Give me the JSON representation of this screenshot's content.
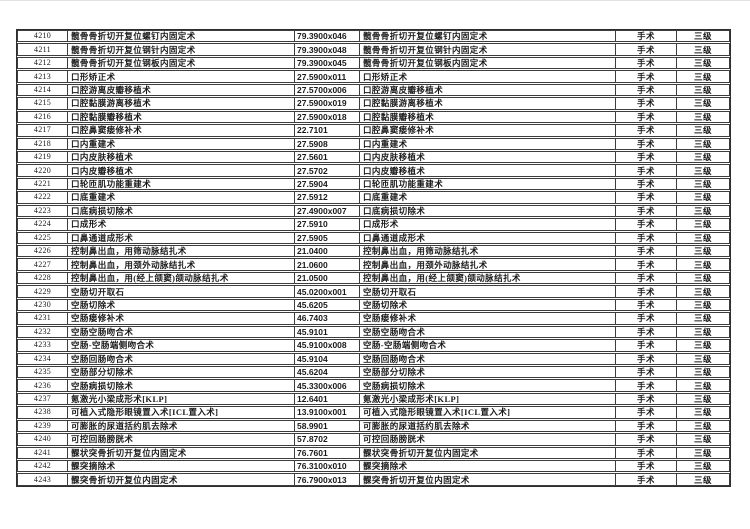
{
  "page": {
    "background": "#ffffff",
    "border_color": "#3d3d3d",
    "text_color": "#1a1a1a"
  },
  "table": {
    "rows": [
      {
        "no": "4210",
        "name": "髋骨骨折切开复位螺钉内固定术",
        "code": "79.3900x046",
        "name_repeat": "髋骨骨折切开复位螺钉内固定术",
        "category": "手术",
        "level": "三级"
      },
      {
        "no": "4211",
        "name": "髋骨骨折切开复位钢针内固定术",
        "code": "79.3900x048",
        "name_repeat": "髋骨骨折切开复位钢针内固定术",
        "category": "手术",
        "level": "三级"
      },
      {
        "no": "4212",
        "name": "髋骨骨折切开复位钢板内固定术",
        "code": "79.3900x045",
        "name_repeat": "髋骨骨折切开复位钢板内固定术",
        "category": "手术",
        "level": "三级"
      },
      {
        "no": "4213",
        "name": "口形矫正术",
        "code": "27.5900x011",
        "name_repeat": "口形矫正术",
        "category": "手术",
        "level": "三级"
      },
      {
        "no": "4214",
        "name": "口腔游离皮瓣移植术",
        "code": "27.5700x006",
        "name_repeat": "口腔游离皮瓣移植术",
        "category": "手术",
        "level": "三级"
      },
      {
        "no": "4215",
        "name": "口腔黏膜游离移植术",
        "code": "27.5900x019",
        "name_repeat": "口腔黏膜游离移植术",
        "category": "手术",
        "level": "三级"
      },
      {
        "no": "4216",
        "name": "口腔黏膜瓣移植术",
        "code": "27.5900x018",
        "name_repeat": "口腔黏膜瓣移植术",
        "category": "手术",
        "level": "三级"
      },
      {
        "no": "4217",
        "name": "口腔鼻窦瘘修补术",
        "code": "22.7101",
        "name_repeat": "口腔鼻窦瘘修补术",
        "category": "手术",
        "level": "三级"
      },
      {
        "no": "4218",
        "name": "口内重建术",
        "code": "27.5908",
        "name_repeat": "口内重建术",
        "category": "手术",
        "level": "三级"
      },
      {
        "no": "4219",
        "name": "口内皮肤移植术",
        "code": "27.5601",
        "name_repeat": "口内皮肤移植术",
        "category": "手术",
        "level": "三级"
      },
      {
        "no": "4220",
        "name": "口内皮瓣移植术",
        "code": "27.5702",
        "name_repeat": "口内皮瓣移植术",
        "category": "手术",
        "level": "三级"
      },
      {
        "no": "4221",
        "name": "口轮匝肌功能重建术",
        "code": "27.5904",
        "name_repeat": "口轮匝肌功能重建术",
        "category": "手术",
        "level": "三级"
      },
      {
        "no": "4222",
        "name": "口底重建术",
        "code": "27.5912",
        "name_repeat": "口底重建术",
        "category": "手术",
        "level": "三级"
      },
      {
        "no": "4223",
        "name": "口底病损切除术",
        "code": "27.4900x007",
        "name_repeat": "口底病损切除术",
        "category": "手术",
        "level": "三级"
      },
      {
        "no": "4224",
        "name": "口成形术",
        "code": "27.5910",
        "name_repeat": "口成形术",
        "category": "手术",
        "level": "三级"
      },
      {
        "no": "4225",
        "name": "口鼻通道成形术",
        "code": "27.5905",
        "name_repeat": "口鼻通道成形术",
        "category": "手术",
        "level": "三级"
      },
      {
        "no": "4226",
        "name": "控制鼻出血，用筛动脉结扎术",
        "code": "21.0400",
        "name_repeat": "控制鼻出血，用筛动脉结扎术",
        "category": "手术",
        "level": "三级"
      },
      {
        "no": "4227",
        "name": "控制鼻出血，用颈外动脉结扎术",
        "code": "21.0600",
        "name_repeat": "控制鼻出血，用颈外动脉结扎术",
        "category": "手术",
        "level": "三级"
      },
      {
        "no": "4228",
        "name": "控制鼻出血，用(经上颌窦)颌动脉结扎术",
        "code": "21.0500",
        "name_repeat": "控制鼻出血，用(经上颌窦)颌动脉结扎术",
        "category": "手术",
        "level": "三级"
      },
      {
        "no": "4229",
        "name": "空肠切开取石",
        "code": "45.0200x001",
        "name_repeat": "空肠切开取石",
        "category": "手术",
        "level": "三级"
      },
      {
        "no": "4230",
        "name": "空肠切除术",
        "code": "45.6205",
        "name_repeat": "空肠切除术",
        "category": "手术",
        "level": "三级"
      },
      {
        "no": "4231",
        "name": "空肠瘘修补术",
        "code": "46.7403",
        "name_repeat": "空肠瘘修补术",
        "category": "手术",
        "level": "三级"
      },
      {
        "no": "4232",
        "name": "空肠空肠吻合术",
        "code": "45.9101",
        "name_repeat": "空肠空肠吻合术",
        "category": "手术",
        "level": "三级"
      },
      {
        "no": "4233",
        "name": "空肠-空肠端侧吻合术",
        "code": "45.9100x008",
        "name_repeat": "空肠-空肠端侧吻合术",
        "category": "手术",
        "level": "三级"
      },
      {
        "no": "4234",
        "name": "空肠回肠吻合术",
        "code": "45.9104",
        "name_repeat": "空肠回肠吻合术",
        "category": "手术",
        "level": "三级"
      },
      {
        "no": "4235",
        "name": "空肠部分切除术",
        "code": "45.6204",
        "name_repeat": "空肠部分切除术",
        "category": "手术",
        "level": "三级"
      },
      {
        "no": "4236",
        "name": "空肠病损切除术",
        "code": "45.3300x006",
        "name_repeat": "空肠病损切除术",
        "category": "手术",
        "level": "三级"
      },
      {
        "no": "4237",
        "name": "氪激光小梁成形术[KLP]",
        "code": "12.6401",
        "name_repeat": "氪激光小梁成形术[KLP]",
        "category": "手术",
        "level": "三级"
      },
      {
        "no": "4238",
        "name": "可植入式隐形眼镜置入术[ICL置入术]",
        "code": "13.9100x001",
        "name_repeat": "可植入式隐形眼镜置入术[ICL置入术]",
        "category": "手术",
        "level": "三级"
      },
      {
        "no": "4239",
        "name": "可膨胀的尿道括约肌去除术",
        "code": "58.9901",
        "name_repeat": "可膨胀的尿道括约肌去除术",
        "category": "手术",
        "level": "三级"
      },
      {
        "no": "4240",
        "name": "可控回肠膀胱术",
        "code": "57.8702",
        "name_repeat": "可控回肠膀胱术",
        "category": "手术",
        "level": "三级"
      },
      {
        "no": "4241",
        "name": "髁状突骨折切开复位内固定术",
        "code": "76.7601",
        "name_repeat": "髁状突骨折切开复位内固定术",
        "category": "手术",
        "level": "三级"
      },
      {
        "no": "4242",
        "name": "髁突摘除术",
        "code": "76.3100x010",
        "name_repeat": "髁突摘除术",
        "category": "手术",
        "level": "三级"
      },
      {
        "no": "4243",
        "name": "髁突骨折切开复位内固定术",
        "code": "76.7900x013",
        "name_repeat": "髁突骨折切开复位内固定术",
        "category": "手术",
        "level": "三级"
      }
    ]
  }
}
